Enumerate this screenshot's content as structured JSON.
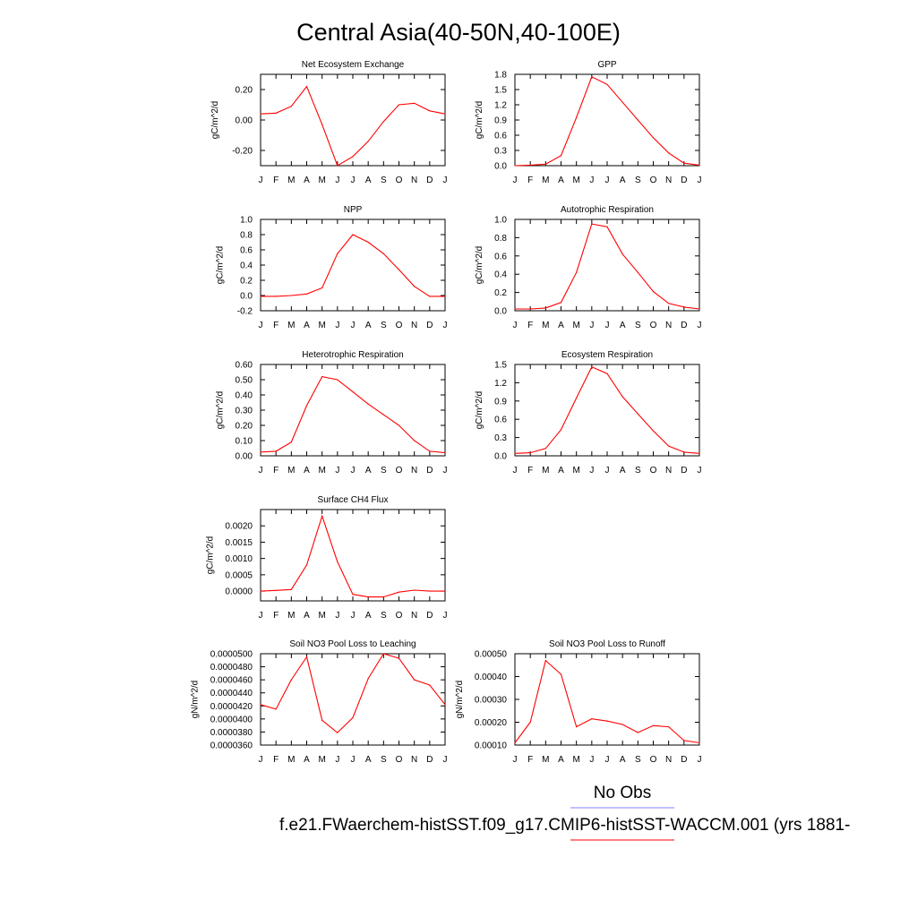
{
  "figure": {
    "title": "Central Asia(40-50N,40-100E)",
    "legend_obs_label": "No Obs",
    "legend_model_label": "f.e21.FWaerchem-histSST.f09_g17.CMIP6-histSST-WACCM.001 (yrs 1881-",
    "obs_color": "#8080ff",
    "model_color": "#ff0000",
    "month_labels": [
      "J",
      "F",
      "M",
      "A",
      "M",
      "J",
      "J",
      "A",
      "S",
      "O",
      "N",
      "D",
      "J"
    ]
  },
  "chart_data": [
    {
      "type": "line",
      "title": "Net Ecosystem Exchange",
      "ylabel": "gC/m^2/d",
      "ylim": [
        -0.3,
        0.3
      ],
      "yticks": [
        -0.2,
        0.0,
        0.2
      ],
      "ytick_labels": [
        "-0.20",
        "0.00",
        "0.20"
      ],
      "series": [
        {
          "values": [
            0.04,
            0.045,
            0.09,
            0.22,
            -0.03,
            -0.3,
            -0.24,
            -0.14,
            -0.01,
            0.1,
            0.11,
            0.06,
            0.04
          ]
        }
      ]
    },
    {
      "type": "line",
      "title": "GPP",
      "ylabel": "gC/m^2/d",
      "ylim": [
        0.0,
        1.8
      ],
      "yticks": [
        0.0,
        0.3,
        0.6,
        0.9,
        1.2,
        1.5,
        1.8
      ],
      "ytick_labels": [
        "0.0",
        "0.3",
        "0.6",
        "0.9",
        "1.2",
        "1.5",
        "1.8"
      ],
      "series": [
        {
          "values": [
            0.0,
            0.01,
            0.03,
            0.2,
            0.95,
            1.75,
            1.6,
            1.25,
            0.9,
            0.55,
            0.25,
            0.05,
            0.01
          ]
        }
      ]
    },
    {
      "type": "line",
      "title": "NPP",
      "ylabel": "gC/m^2/d",
      "ylim": [
        -0.2,
        1.0
      ],
      "yticks": [
        -0.2,
        0.0,
        0.2,
        0.4,
        0.6,
        0.8,
        1.0
      ],
      "ytick_labels": [
        "-0.2",
        "0.0",
        "0.2",
        "0.4",
        "0.6",
        "0.8",
        "1.0"
      ],
      "series": [
        {
          "values": [
            -0.01,
            -0.01,
            0.0,
            0.02,
            0.1,
            0.55,
            0.8,
            0.7,
            0.55,
            0.34,
            0.12,
            -0.01,
            -0.01
          ]
        }
      ]
    },
    {
      "type": "line",
      "title": "Autotrophic Respiration",
      "ylabel": "gC/m^2/d",
      "ylim": [
        0.0,
        1.0
      ],
      "yticks": [
        0.0,
        0.2,
        0.4,
        0.6,
        0.8,
        1.0
      ],
      "ytick_labels": [
        "0.0",
        "0.2",
        "0.4",
        "0.6",
        "0.8",
        "1.0"
      ],
      "series": [
        {
          "values": [
            0.02,
            0.02,
            0.03,
            0.09,
            0.42,
            0.95,
            0.92,
            0.62,
            0.42,
            0.21,
            0.08,
            0.04,
            0.02
          ]
        }
      ]
    },
    {
      "type": "line",
      "title": "Heterotrophic Respiration",
      "ylabel": "gC/m^2/d",
      "ylim": [
        0.0,
        0.6
      ],
      "yticks": [
        0.0,
        0.1,
        0.2,
        0.3,
        0.4,
        0.5,
        0.6
      ],
      "ytick_labels": [
        "0.00",
        "0.10",
        "0.20",
        "0.30",
        "0.40",
        "0.50",
        "0.60"
      ],
      "series": [
        {
          "values": [
            0.025,
            0.03,
            0.09,
            0.33,
            0.52,
            0.5,
            0.42,
            0.34,
            0.27,
            0.2,
            0.1,
            0.03,
            0.02
          ]
        }
      ]
    },
    {
      "type": "line",
      "title": "Ecosystem Respiration",
      "ylabel": "gC/m^2/d",
      "ylim": [
        0.0,
        1.5
      ],
      "yticks": [
        0.0,
        0.3,
        0.6,
        0.9,
        1.2,
        1.5
      ],
      "ytick_labels": [
        "0.0",
        "0.3",
        "0.6",
        "0.9",
        "1.2",
        "1.5"
      ],
      "series": [
        {
          "values": [
            0.04,
            0.05,
            0.12,
            0.43,
            0.95,
            1.46,
            1.35,
            0.97,
            0.69,
            0.41,
            0.16,
            0.06,
            0.04
          ]
        }
      ]
    },
    {
      "type": "line",
      "title": "Surface CH4 Flux",
      "ylabel": "gC/m^2/d",
      "ylim": [
        -0.0003,
        0.0025
      ],
      "yticks": [
        0.0,
        0.0005,
        0.001,
        0.0015,
        0.002
      ],
      "ytick_labels": [
        "0.0000",
        "0.0005",
        "0.0010",
        "0.0015",
        "0.0020"
      ],
      "series": [
        {
          "values": [
            0.0,
            2e-05,
            5e-05,
            0.0008,
            0.0023,
            0.0009,
            -0.0001,
            -0.00018,
            -0.00018,
            -3e-05,
            3e-05,
            0.0,
            0.0
          ]
        }
      ]
    },
    {
      "type": "line",
      "title": "Soil NO3 Pool Loss to Leaching",
      "ylabel": "gN/m^2/d",
      "ylim": [
        3.6e-05,
        5e-05
      ],
      "yticks": [
        3.6e-05,
        3.8e-05,
        4e-05,
        4.2e-05,
        4.4e-05,
        4.6e-05,
        4.8e-05,
        5e-05
      ],
      "ytick_labels": [
        "0.0000360",
        "0.0000380",
        "0.0000400",
        "0.0000420",
        "0.0000440",
        "0.0000460",
        "0.0000480",
        "0.0000500"
      ],
      "series": [
        {
          "values": [
            4.22e-05,
            4.15e-05,
            4.6e-05,
            4.95e-05,
            3.98e-05,
            3.79e-05,
            4.02e-05,
            4.62e-05,
            5e-05,
            4.93e-05,
            4.6e-05,
            4.52e-05,
            4.22e-05
          ]
        }
      ]
    },
    {
      "type": "line",
      "title": "Soil NO3 Pool Loss to Runoff",
      "ylabel": "gN/m^2/d",
      "ylim": [
        0.0001,
        0.0005
      ],
      "yticks": [
        0.0001,
        0.0002,
        0.0003,
        0.0004,
        0.0005
      ],
      "ytick_labels": [
        "0.00010",
        "0.00020",
        "0.00030",
        "0.00040",
        "0.00050"
      ],
      "series": [
        {
          "values": [
            0.00011,
            0.0002,
            0.00047,
            0.00041,
            0.00018,
            0.000215,
            0.000205,
            0.00019,
            0.000155,
            0.000185,
            0.00018,
            0.00012,
            0.00011
          ]
        }
      ]
    }
  ]
}
